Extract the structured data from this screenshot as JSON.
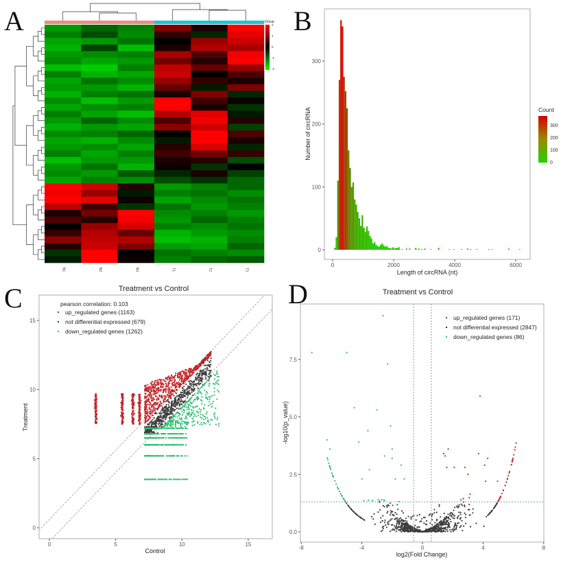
{
  "panel_labels": [
    "A",
    "B",
    "C",
    "D"
  ],
  "colors": {
    "up": "#c0282d",
    "not_diff": "#3c3c3c",
    "down": "#2fbf71",
    "group_1": "#f08a80",
    "group_2": "#19c6d6",
    "heat_low": "#00ff00",
    "heat_mid": "#000000",
    "heat_high": "#ff0000"
  },
  "chart_data": [
    {
      "type": "heatmap",
      "panel": "A",
      "columns": [
        "N1",
        "N2",
        "N3",
        "T1",
        "T2",
        "T3"
      ],
      "column_groups": [
        1,
        1,
        1,
        2,
        2,
        2
      ],
      "legend_title": "Group",
      "legend_ticks": [
        "2",
        "1",
        "0",
        "-1",
        "-2"
      ],
      "scale": [
        -2,
        2
      ],
      "values": [
        [
          -1.2,
          -0.8,
          -1.0,
          1.0,
          0.2,
          2.0
        ],
        [
          -1.0,
          -0.6,
          -1.1,
          0.4,
          -0.3,
          1.8
        ],
        [
          -1.3,
          -1.2,
          -0.9,
          0.0,
          1.2,
          1.6
        ],
        [
          -1.4,
          -0.5,
          -1.5,
          0.2,
          1.4,
          1.3
        ],
        [
          -1.2,
          -1.1,
          -1.0,
          1.3,
          0.6,
          1.9
        ],
        [
          -1.1,
          -1.3,
          -1.2,
          0.9,
          0.3,
          2.0
        ],
        [
          -1.5,
          -1.6,
          -1.0,
          1.5,
          0.8,
          1.2
        ],
        [
          -1.0,
          -1.4,
          -1.3,
          1.6,
          0.0,
          0.6
        ],
        [
          -1.3,
          -0.9,
          -1.1,
          1.2,
          0.4,
          0.2
        ],
        [
          -1.2,
          -1.2,
          -1.4,
          0.8,
          -0.2,
          1.0
        ],
        [
          -1.4,
          -1.0,
          -0.9,
          0.2,
          1.0,
          -0.3
        ],
        [
          -1.1,
          -1.5,
          -1.2,
          2.0,
          0.5,
          0.1
        ],
        [
          -1.3,
          -1.1,
          -1.0,
          2.0,
          0.2,
          -0.4
        ],
        [
          -1.0,
          -1.3,
          -1.5,
          1.4,
          1.8,
          -0.2
        ],
        [
          -1.2,
          -0.8,
          -1.1,
          0.6,
          1.9,
          0.3
        ],
        [
          -1.4,
          -1.2,
          -1.3,
          1.1,
          1.6,
          -0.5
        ],
        [
          -1.1,
          -1.0,
          -0.8,
          0.0,
          2.0,
          0.6
        ],
        [
          -1.3,
          -1.4,
          -1.1,
          -0.2,
          2.0,
          0.2
        ],
        [
          -1.2,
          -1.1,
          -1.3,
          0.3,
          1.7,
          -0.3
        ],
        [
          -1.0,
          -1.3,
          -1.0,
          0.5,
          0.9,
          0.4
        ],
        [
          -1.5,
          -1.2,
          -1.2,
          0.2,
          0.3,
          -0.6
        ],
        [
          -1.2,
          -0.9,
          -1.4,
          0.1,
          -0.4,
          0.0
        ],
        [
          -1.1,
          -1.2,
          -0.7,
          -0.3,
          0.2,
          -0.5
        ],
        [
          -1.3,
          -1.0,
          -1.1,
          -0.6,
          -0.4,
          -0.8
        ],
        [
          2.0,
          1.6,
          0.3,
          -1.2,
          -1.0,
          -0.8
        ],
        [
          1.9,
          1.2,
          -0.2,
          -1.0,
          -0.9,
          -1.1
        ],
        [
          2.0,
          1.8,
          0.1,
          -1.3,
          -1.1,
          -0.9
        ],
        [
          1.5,
          0.5,
          -0.4,
          -0.9,
          -1.2,
          -1.0
        ],
        [
          0.2,
          0.9,
          2.0,
          -1.1,
          -1.0,
          -1.2
        ],
        [
          0.6,
          0.3,
          1.9,
          -1.2,
          -0.8,
          -1.0
        ],
        [
          0.0,
          1.2,
          1.7,
          -1.0,
          -1.1,
          -0.9
        ],
        [
          0.4,
          1.4,
          0.8,
          -1.4,
          -1.2,
          -1.1
        ],
        [
          1.1,
          1.5,
          1.4,
          -1.5,
          -1.4,
          -1.0
        ],
        [
          0.3,
          1.6,
          1.0,
          -1.2,
          -1.3,
          -0.8
        ],
        [
          -0.4,
          2.0,
          0.0,
          -0.9,
          -1.0,
          -1.1
        ],
        [
          -0.2,
          2.0,
          0.1,
          -1.0,
          -0.8,
          -0.7
        ]
      ]
    },
    {
      "type": "bar",
      "panel": "B",
      "xlabel": "Length of circRNA (nt)",
      "ylabel": "Number of circRNA",
      "xlim": [
        -200,
        6400
      ],
      "ylim": [
        -20,
        395
      ],
      "xticks": [
        "0",
        "2000",
        "4000",
        "6000"
      ],
      "yticks": [
        "0",
        "100",
        "200",
        "300"
      ],
      "legend_title": "Count",
      "legend_ticks": [
        "300",
        "200",
        "100",
        "0"
      ],
      "bin_width": 50,
      "bins_start": [
        50,
        100,
        150,
        200,
        250,
        300,
        350,
        400,
        450,
        500,
        550,
        600,
        650,
        700,
        750,
        800,
        850,
        900,
        950,
        1000,
        1050,
        1100,
        1150,
        1200,
        1250,
        1300,
        1350,
        1400,
        1450,
        1500,
        1550,
        1600,
        1650,
        1700,
        1750,
        1800,
        1850,
        1900,
        1950,
        2000,
        2050,
        2100,
        2150,
        2250,
        2400,
        2500,
        2700,
        2800,
        2900,
        3000,
        3200,
        3450,
        3800,
        3950,
        4200,
        4400,
        4500,
        4700,
        5100,
        5200,
        5750,
        6100
      ],
      "counts": [
        3,
        20,
        110,
        270,
        365,
        355,
        275,
        252,
        225,
        158,
        130,
        100,
        107,
        80,
        72,
        60,
        50,
        38,
        55,
        35,
        28,
        37,
        30,
        22,
        18,
        10,
        12,
        8,
        6,
        5,
        8,
        10,
        7,
        5,
        6,
        3,
        3,
        2,
        4,
        2,
        3,
        3,
        4,
        1,
        2,
        2,
        3,
        2,
        1,
        2,
        1,
        3,
        1,
        1,
        1,
        2,
        1,
        1,
        1,
        1,
        2,
        1
      ]
    },
    {
      "type": "scatter",
      "panel": "C",
      "title": "Treatment vs Control",
      "xlabel": "Control",
      "ylabel": "Treatment",
      "xlim": [
        -0.8,
        16.8
      ],
      "ylim": [
        -0.8,
        16.8
      ],
      "xticks": [
        "0",
        "5",
        "10",
        "15"
      ],
      "yticks": [
        "0",
        "5",
        "10",
        "15"
      ],
      "annotation": "pearson correlation: 0.103",
      "series": [
        {
          "name": "up_regulated genes (1163)",
          "count": 1163
        },
        {
          "name": "not differential expressed (679)",
          "count": 679
        },
        {
          "name": "down_regulated genes (1262)",
          "count": 1262
        }
      ],
      "legend": "top-left",
      "reference_lines": "dashed diagonals"
    },
    {
      "type": "scatter",
      "panel": "D",
      "title": "Treatment vs Control",
      "xlabel": "log2(Fold Change)",
      "ylabel": "-log10(p_value)",
      "xlim": [
        -8,
        8
      ],
      "ylim": [
        -0.4,
        9.9
      ],
      "xticks": [
        "-8",
        "-4",
        "0",
        "4",
        "8"
      ],
      "yticks": [
        "0.0",
        "2.5",
        "5.0",
        "7.5"
      ],
      "series": [
        {
          "name": "up_regulated genes (171)",
          "count": 171
        },
        {
          "name": "not differential expressed (2847)",
          "count": 2847
        },
        {
          "name": "down_regulated genes (86)",
          "count": 86
        }
      ],
      "legend": "top-right",
      "thresholds": {
        "log2fc": 0.585,
        "neg_log10_p": 1.301
      },
      "highlighted_points": [
        [
          -2.6,
          9.4
        ],
        [
          -7.3,
          7.8
        ],
        [
          -5.0,
          7.8
        ],
        [
          -2.3,
          7.3
        ],
        [
          -4.5,
          5.4
        ],
        [
          -3.0,
          5.3
        ],
        [
          -2.1,
          4.6
        ],
        [
          -3.6,
          4.4
        ],
        [
          -4.2,
          3.9
        ],
        [
          -6.3,
          4.0
        ],
        [
          -6.1,
          3.6
        ],
        [
          -2.0,
          3.6
        ],
        [
          -2.5,
          3.3
        ],
        [
          -2.0,
          3.2
        ],
        [
          -1.4,
          2.9
        ],
        [
          -3.5,
          2.7
        ],
        [
          -4.0,
          2.3
        ],
        [
          -1.8,
          2.3
        ],
        [
          -1.2,
          2.3
        ],
        [
          3.8,
          5.9
        ],
        [
          1.7,
          3.6
        ],
        [
          1.4,
          3.4
        ],
        [
          3.7,
          3.4
        ],
        [
          4.3,
          3.2
        ],
        [
          1.5,
          3.3
        ],
        [
          2.8,
          2.8
        ],
        [
          1.6,
          2.8
        ],
        [
          3.0,
          2.5
        ],
        [
          2.1,
          2.8
        ],
        [
          4.1,
          2.9
        ]
      ]
    }
  ]
}
